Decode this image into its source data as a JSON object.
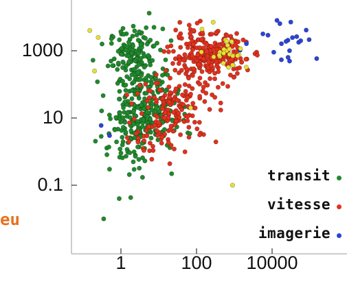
{
  "chart_data": {
    "type": "scatter",
    "title": "",
    "xlabel": "",
    "ylabel": "",
    "x_scale": "log",
    "y_scale": "log",
    "xlim": [
      0.1,
      100000
    ],
    "ylim": [
      0.005,
      100000
    ],
    "x_ticks": [
      {
        "value": 1,
        "label": "1"
      },
      {
        "value": 100,
        "label": "100"
      },
      {
        "value": 10000,
        "label": "10000"
      }
    ],
    "y_ticks": [
      {
        "value": 1000,
        "label": "1000"
      },
      {
        "value": 10,
        "label": "10"
      },
      {
        "value": 0.1,
        "label": "0.1"
      }
    ],
    "legend_position": "bottom-right",
    "grid": false,
    "series": [
      {
        "name": "transit",
        "color": "#1f8a2c",
        "clusters": [
          {
            "x_center": 2.5,
            "y_center": 600,
            "x_spread": 0.35,
            "y_spread": 0.45,
            "n": 160
          },
          {
            "x_center": 4,
            "y_center": 15,
            "x_spread": 0.45,
            "y_spread": 0.55,
            "n": 240
          },
          {
            "x_center": 1.5,
            "y_center": 1.5,
            "x_spread": 0.4,
            "y_spread": 0.6,
            "n": 40
          }
        ],
        "points": [
          [
            0.9,
            0.04
          ],
          [
            0.35,
            0.01
          ],
          [
            0.5,
            0.3
          ],
          [
            1.0,
            0.9
          ],
          [
            22,
            0.22
          ]
        ]
      },
      {
        "name": "vitesse",
        "color": "#e2311d",
        "clusters": [
          {
            "x_center": 200,
            "y_center": 700,
            "x_spread": 0.5,
            "y_spread": 0.35,
            "n": 260
          },
          {
            "x_center": 30,
            "y_center": 20,
            "x_spread": 0.55,
            "y_spread": 0.5,
            "n": 140
          },
          {
            "x_center": 8,
            "y_center": 3,
            "x_spread": 0.4,
            "y_spread": 0.4,
            "n": 30
          }
        ],
        "points": []
      },
      {
        "name": "imagerie",
        "color": "#2a44d8",
        "clusters": [
          {
            "x_center": 20000,
            "y_center": 2500,
            "x_spread": 0.45,
            "y_spread": 0.35,
            "n": 22
          }
        ],
        "points": [
          [
            0.3,
            6
          ],
          [
            0.5,
            3
          ],
          [
            2000,
            30000
          ],
          [
            200,
            30000
          ]
        ]
      },
      {
        "name": "",
        "color": "#e6e035",
        "clusters": [
          {
            "x_center": 600,
            "y_center": 1000,
            "x_spread": 0.3,
            "y_spread": 0.3,
            "n": 25
          }
        ],
        "points": [
          [
            0.15,
            4000
          ],
          [
            0.2,
            250
          ],
          [
            0.25,
            2500
          ],
          [
            70,
            20
          ],
          [
            900,
            0.1
          ]
        ]
      }
    ]
  },
  "legend": [
    {
      "label": "transit",
      "color": "#1f8a2c"
    },
    {
      "label": "vitesse",
      "color": "#e2311d"
    },
    {
      "label": "imagerie",
      "color": "#2a44d8"
    }
  ],
  "cutoff_text": "eu"
}
